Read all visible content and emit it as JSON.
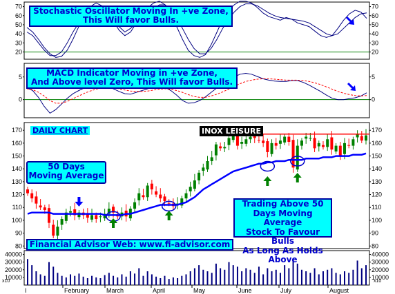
{
  "chart_data": {
    "title": "INOX LEISURE",
    "subtitle": "DAILY CHART",
    "x_month_labels": [
      "February",
      "March",
      "April",
      "May",
      "June",
      "July",
      "August"
    ],
    "x_first_tick_label": "I",
    "panels": [
      {
        "name": "Stochastic",
        "type": "line",
        "y_ticks": [
          20,
          30,
          40,
          50,
          60,
          70
        ],
        "ylim": [
          12,
          75
        ],
        "reference_lines": [
          20,
          80
        ],
        "series": [
          {
            "values": [
              42,
              38,
              30,
              22,
              16,
              16,
              20,
              30,
              42,
              52,
              60,
              67,
              71,
              69,
              64,
              56,
              48,
              42,
              46,
              52,
              58,
              63,
              68,
              72,
              72,
              67,
              58,
              46,
              34,
              24,
              18,
              18,
              24,
              34,
              46,
              56,
              64,
              70,
              73,
              73,
              71,
              67,
              63,
              60,
              58,
              57,
              56,
              55,
              54,
              52,
              48,
              44,
              40,
              38,
              40,
              46,
              52,
              58,
              62,
              63
            ]
          },
          {
            "values": [
              47,
              42,
              34,
              25,
              18,
              14,
              15,
              22,
              34,
              48,
              60,
              70,
              74,
              71,
              64,
              54,
              44,
              38,
              42,
              52,
              62,
              69,
              74,
              76,
              72,
              62,
              48,
              34,
              22,
              16,
              14,
              17,
              28,
              42,
              56,
              66,
              72,
              76,
              76,
              74,
              69,
              63,
              59,
              57,
              55,
              58,
              56,
              52,
              50,
              48,
              43,
              38,
              36,
              38,
              46,
              55,
              62,
              66,
              64,
              57
            ]
          }
        ]
      },
      {
        "name": "MACD",
        "type": "line",
        "y_ticks": [
          0,
          5
        ],
        "ylim": [
          -4,
          8
        ],
        "reference_lines": [
          0
        ],
        "series": [
          {
            "values": [
              2.6,
              2.0,
              0.5,
              -1.5,
              -3.0,
              -2.2,
              -1.0,
              0.3,
              1.3,
              2.0,
              2.6,
              3.0,
              3.3,
              3.3,
              3.0,
              2.4,
              1.8,
              1.3,
              1.2,
              1.6,
              2.0,
              2.4,
              2.8,
              3.0,
              2.7,
              2.0,
              1.0,
              -0.2,
              -0.8,
              -0.7,
              -0.2,
              0.6,
              1.6,
              2.6,
              3.6,
              4.4,
              5.0,
              5.6,
              5.8,
              5.6,
              5.1,
              4.6,
              4.3,
              4.1,
              4.0,
              4.0,
              4.2,
              4.2,
              3.8,
              3.2,
              2.5,
              1.8,
              1.0,
              0.3,
              0.0,
              0.0,
              0.2,
              0.4,
              0.8,
              1.5
            ]
          },
          {
            "values": [
              2.4,
              2.2,
              1.6,
              0.8,
              -0.2,
              -0.8,
              -0.8,
              -0.4,
              0.2,
              0.8,
              1.4,
              1.9,
              2.3,
              2.6,
              2.7,
              2.6,
              2.4,
              2.1,
              1.9,
              1.8,
              1.8,
              1.9,
              2.1,
              2.3,
              2.4,
              2.3,
              2.0,
              1.6,
              1.1,
              0.7,
              0.5,
              0.5,
              0.8,
              1.2,
              1.7,
              2.3,
              2.9,
              3.5,
              4.0,
              4.3,
              4.5,
              4.6,
              4.6,
              4.5,
              4.4,
              4.3,
              4.3,
              4.3,
              4.2,
              4.0,
              3.7,
              3.3,
              2.8,
              2.3,
              1.8,
              1.4,
              1.1,
              0.9,
              0.8,
              0.9
            ]
          }
        ]
      },
      {
        "name": "Price",
        "type": "candlestick",
        "y_ticks": [
          80,
          90,
          100,
          110,
          120,
          130,
          140,
          150,
          160,
          170
        ],
        "ylim": [
          78,
          176
        ],
        "resistance": 167,
        "close": [
          121,
          117,
          113,
          110,
          108,
          98,
          88,
          95,
          101,
          106,
          107,
          104,
          106,
          104,
          102,
          104,
          101,
          103,
          105,
          109,
          106,
          103,
          106,
          103,
          109,
          114,
          121,
          118,
          127,
          124,
          120,
          117,
          115,
          113,
          111,
          113,
          117,
          121,
          126,
          131,
          137,
          141,
          146,
          149,
          159,
          156,
          157,
          164,
          167,
          158,
          161,
          163,
          165,
          164,
          162,
          160,
          153,
          160,
          158,
          162,
          165,
          161,
          141,
          158,
          162,
          165,
          164,
          156,
          160,
          157,
          163,
          155,
          158,
          150,
          160,
          158,
          163,
          167,
          162,
          166
        ],
        "ma50": [
          105,
          106,
          106,
          106,
          106,
          106,
          105,
          105,
          105,
          105,
          105,
          105,
          105,
          105,
          105,
          105,
          105,
          105,
          104,
          104,
          104,
          104,
          104,
          105,
          105,
          106,
          107,
          108,
          109,
          110,
          111,
          112,
          112,
          112,
          112,
          112,
          113,
          114,
          116,
          118,
          121,
          124,
          126,
          128,
          130,
          132,
          134,
          136,
          138,
          139,
          140,
          141,
          142,
          143,
          144,
          144,
          145,
          145,
          146,
          146,
          146,
          147,
          147,
          147,
          147,
          148,
          148,
          148,
          148,
          149,
          149,
          149,
          150,
          150,
          150,
          150,
          151,
          151,
          151,
          152
        ]
      },
      {
        "name": "Volume",
        "type": "bar",
        "y_ticks": [
          10000,
          20000,
          30000,
          40000
        ],
        "ylim": [
          0,
          45000
        ],
        "values": [
          34000,
          26000,
          18000,
          14000,
          12000,
          30000,
          24000,
          16000,
          12000,
          10000,
          14000,
          12000,
          15000,
          11000,
          9000,
          12000,
          10000,
          9000,
          13000,
          16000,
          12000,
          10000,
          14000,
          11000,
          18000,
          15000,
          22000,
          12000,
          18000,
          14000,
          11000,
          9000,
          12000,
          8000,
          10000,
          9000,
          12000,
          14000,
          18000,
          22000,
          26000,
          20000,
          18000,
          16000,
          28000,
          22000,
          20000,
          30000,
          26000,
          24000,
          18000,
          22000,
          20000,
          16000,
          24000,
          14000,
          22000,
          18000,
          20000,
          16000,
          26000,
          22000,
          34000,
          28000,
          20000,
          18000,
          16000,
          22000,
          14000,
          18000,
          20000,
          22000,
          16000,
          14000,
          18000,
          16000,
          20000,
          32000,
          22000,
          26000
        ],
        "y_unit_label": "x10"
      }
    ]
  },
  "annotations": {
    "stochastic": "Stochastic Oscillator Moving In +ve Zone,\nThis Will favor Bulls.",
    "macd": "MACD Indicator Moving in +ve Zone,\nAnd Above level Zero, This Will favor Bulls.",
    "ma50": "50 Days\nMoving Average",
    "trading": "Trading Above 50\nDays Moving Average\nStock To Favour Bulls\nAs Long As Holds Above",
    "advisor": "Financial Advisor Web: www.fi-advisor.com"
  },
  "colors": {
    "frame": "#000000",
    "panel_bg": "#ffffff",
    "ref_line": "#008000",
    "stoch_line": "#000080",
    "macd_line": "#000080",
    "macd_signal": "#ff0000",
    "bull_candle": "#008000",
    "bear_candle": "#ff0000",
    "ma50": "#0000ff",
    "resistance": "#ff0000",
    "volume": "#000080",
    "arrow_up": "#008000",
    "arrow_down": "#0000ff",
    "annotation_bg": "#00ffff",
    "annotation_text": "#0000cc"
  }
}
